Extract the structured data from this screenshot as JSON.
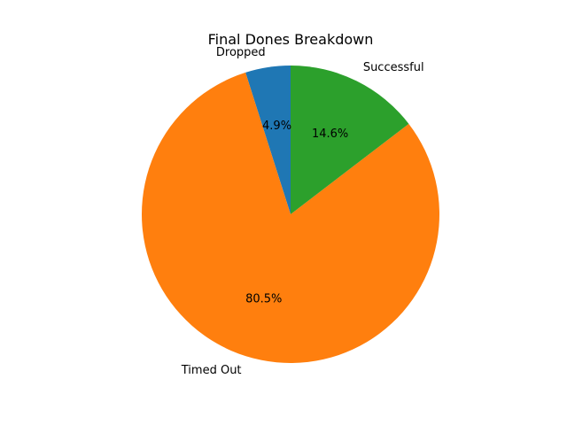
{
  "chart_data": {
    "type": "pie",
    "title": "Final Dones Breakdown",
    "slices": [
      {
        "label": "Dropped",
        "percent_label": "4.9%",
        "value": 4.9,
        "color": "#1f77b4"
      },
      {
        "label": "Timed Out",
        "percent_label": "80.5%",
        "value": 80.5,
        "color": "#ff7f0e"
      },
      {
        "label": "Successful",
        "percent_label": "14.6%",
        "value": 14.6,
        "color": "#2ca02c"
      }
    ],
    "start_angle_deg": 90,
    "direction": "counterclockwise"
  }
}
